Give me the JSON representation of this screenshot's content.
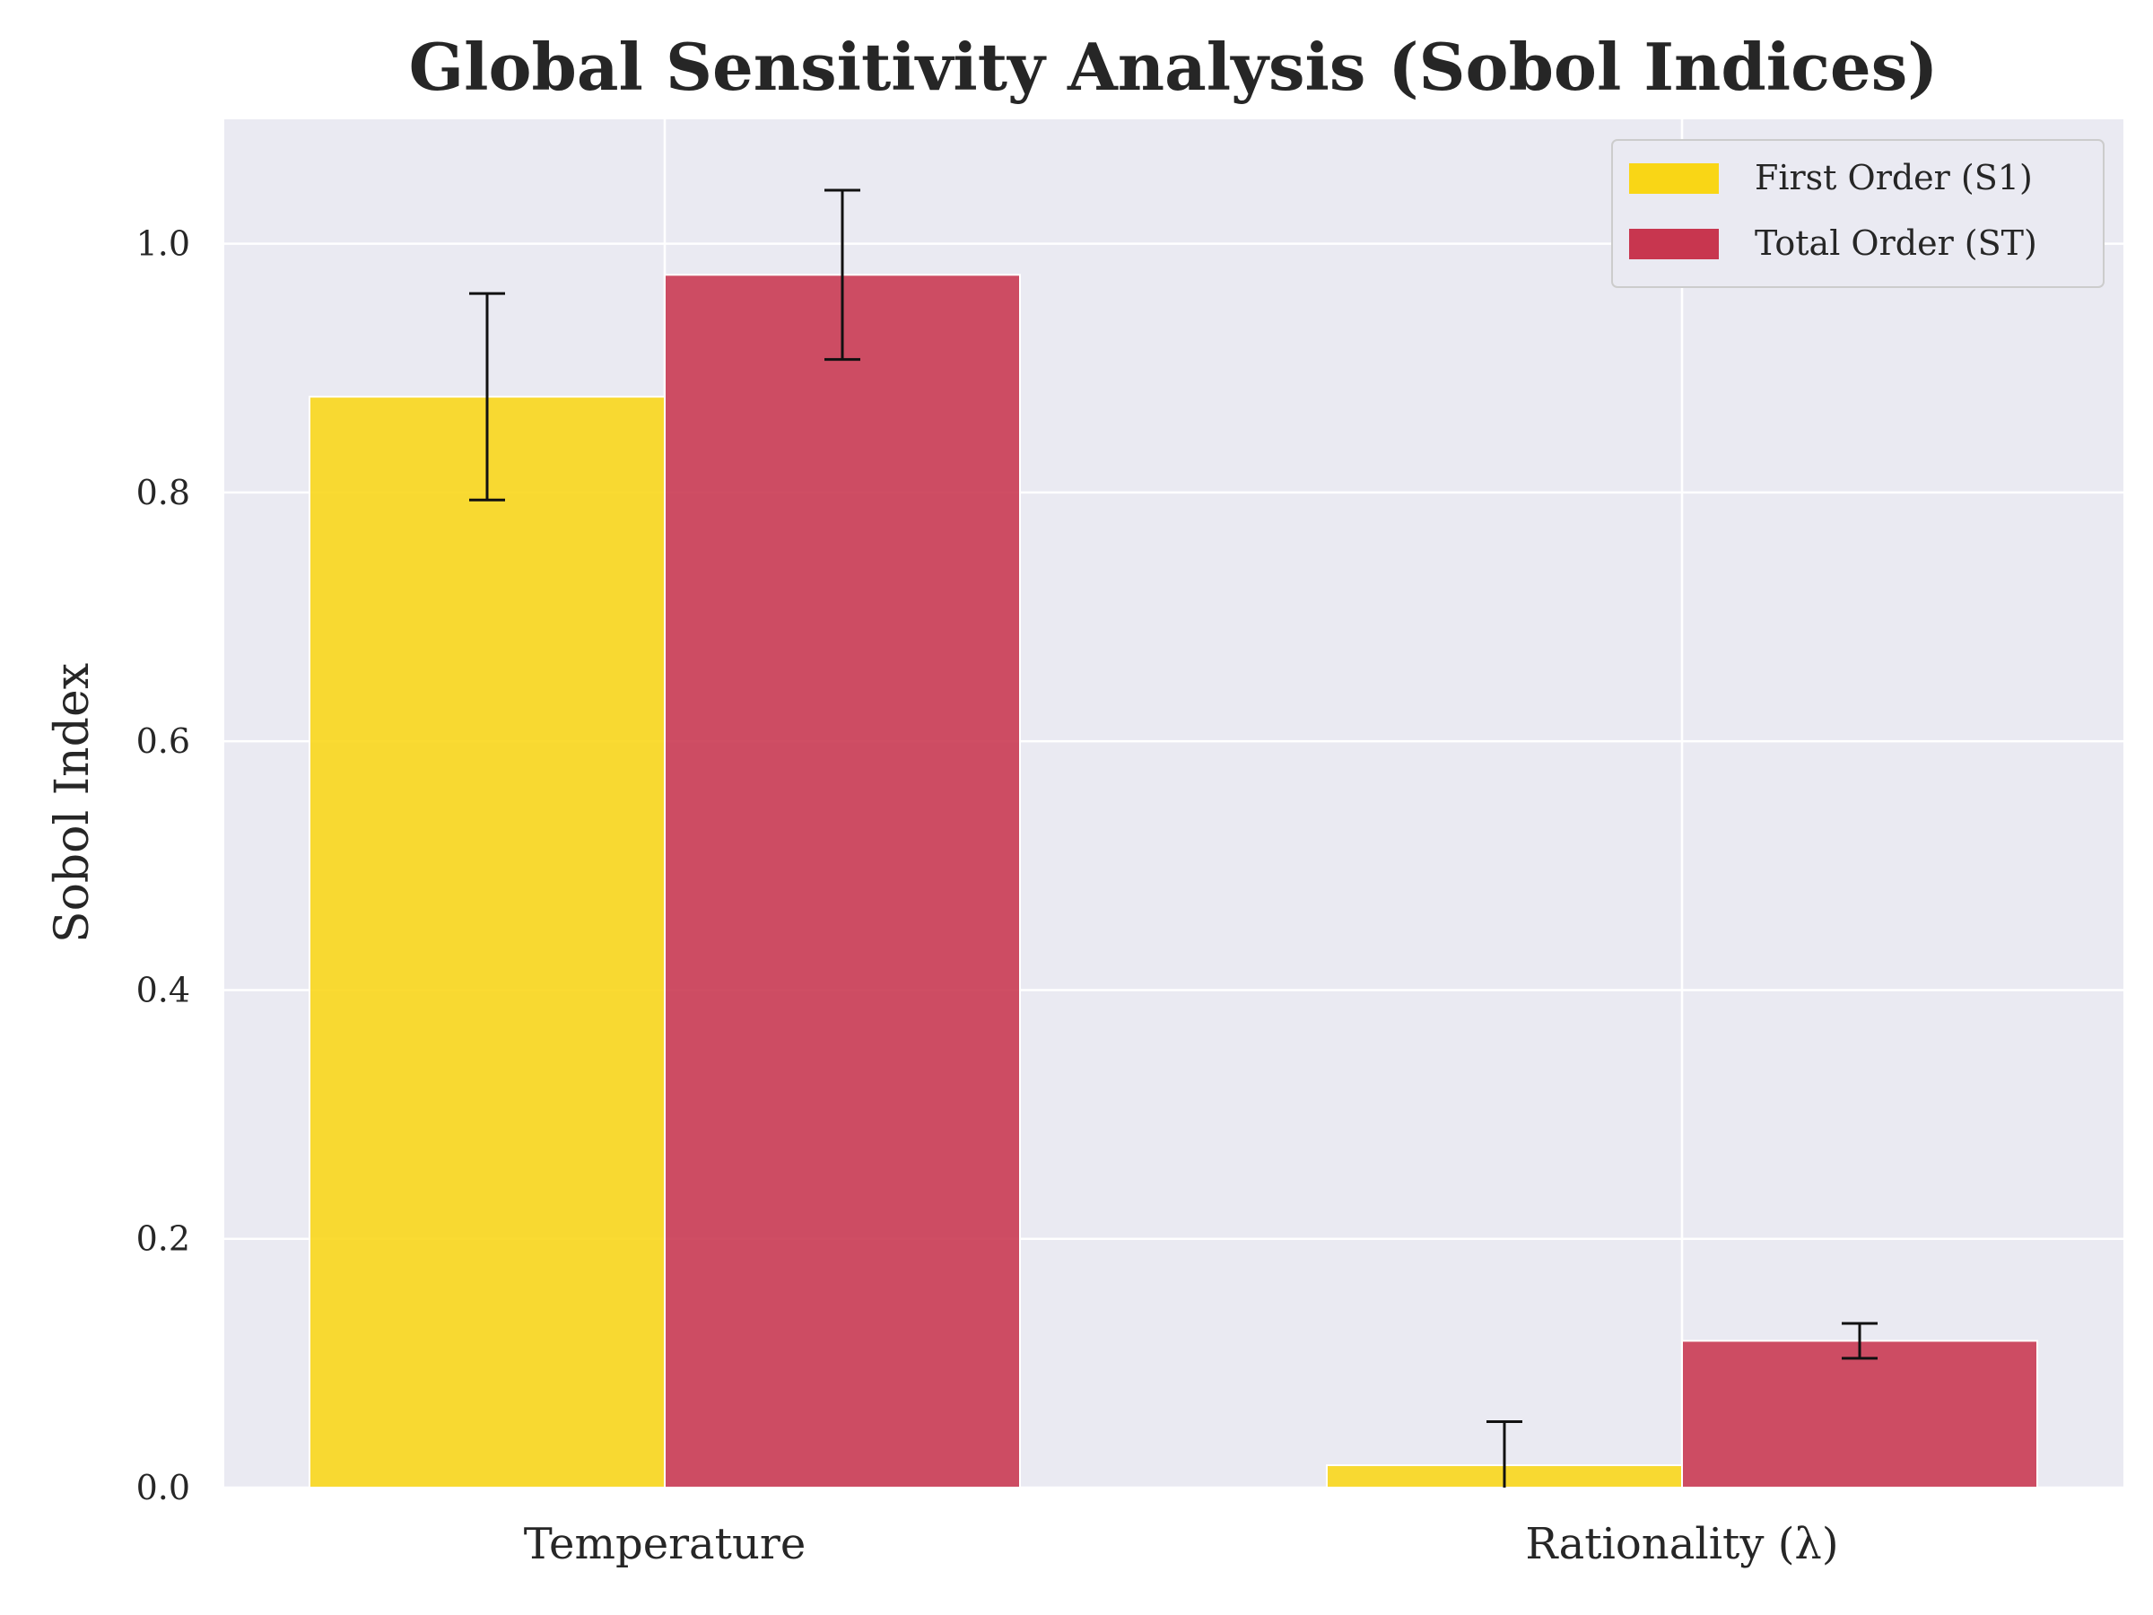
{
  "chart_data": {
    "type": "bar",
    "title": "Global Sensitivity Analysis (Sobol Indices)",
    "xlabel": "",
    "ylabel": "Sobol Index",
    "categories": [
      "Temperature",
      "Rationality (λ)"
    ],
    "series": [
      {
        "name": "First Order (S1)",
        "values": [
          0.877,
          0.018
        ],
        "errors": [
          0.083,
          0.035
        ],
        "color": "#f9d616"
      },
      {
        "name": "Total Order (ST)",
        "values": [
          0.975,
          0.118
        ],
        "errors": [
          0.068,
          0.014
        ],
        "color": "#c8364f"
      }
    ],
    "ylim": [
      0,
      1.1
    ],
    "yticks": [
      "0.0",
      "0.2",
      "0.4",
      "0.6",
      "0.8",
      "1.0"
    ],
    "grid": true,
    "legend_position": "top-right",
    "background": "#eaeaf2"
  }
}
